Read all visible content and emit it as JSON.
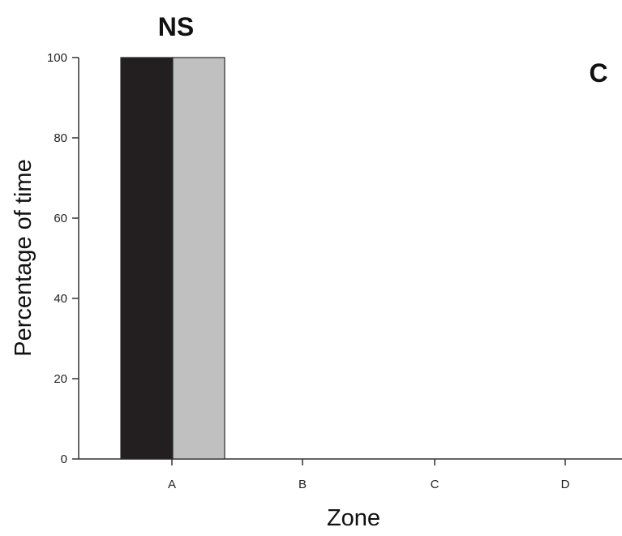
{
  "chart_data": {
    "type": "bar",
    "panel_label": "C",
    "categories": [
      "A",
      "B",
      "C",
      "D"
    ],
    "series": [
      {
        "values": [
          100,
          0,
          0,
          0
        ],
        "color": "#231f20"
      },
      {
        "values": [
          100,
          0,
          0,
          0
        ],
        "color": "#c0c0c0"
      }
    ],
    "annotations": [
      {
        "text": "NS",
        "category": "A"
      }
    ],
    "xlabel": "Zone",
    "ylabel": "Percentage of time",
    "ylim": [
      0,
      100
    ],
    "yticks": [
      0,
      20,
      40,
      60,
      80,
      100
    ],
    "grid": false
  }
}
